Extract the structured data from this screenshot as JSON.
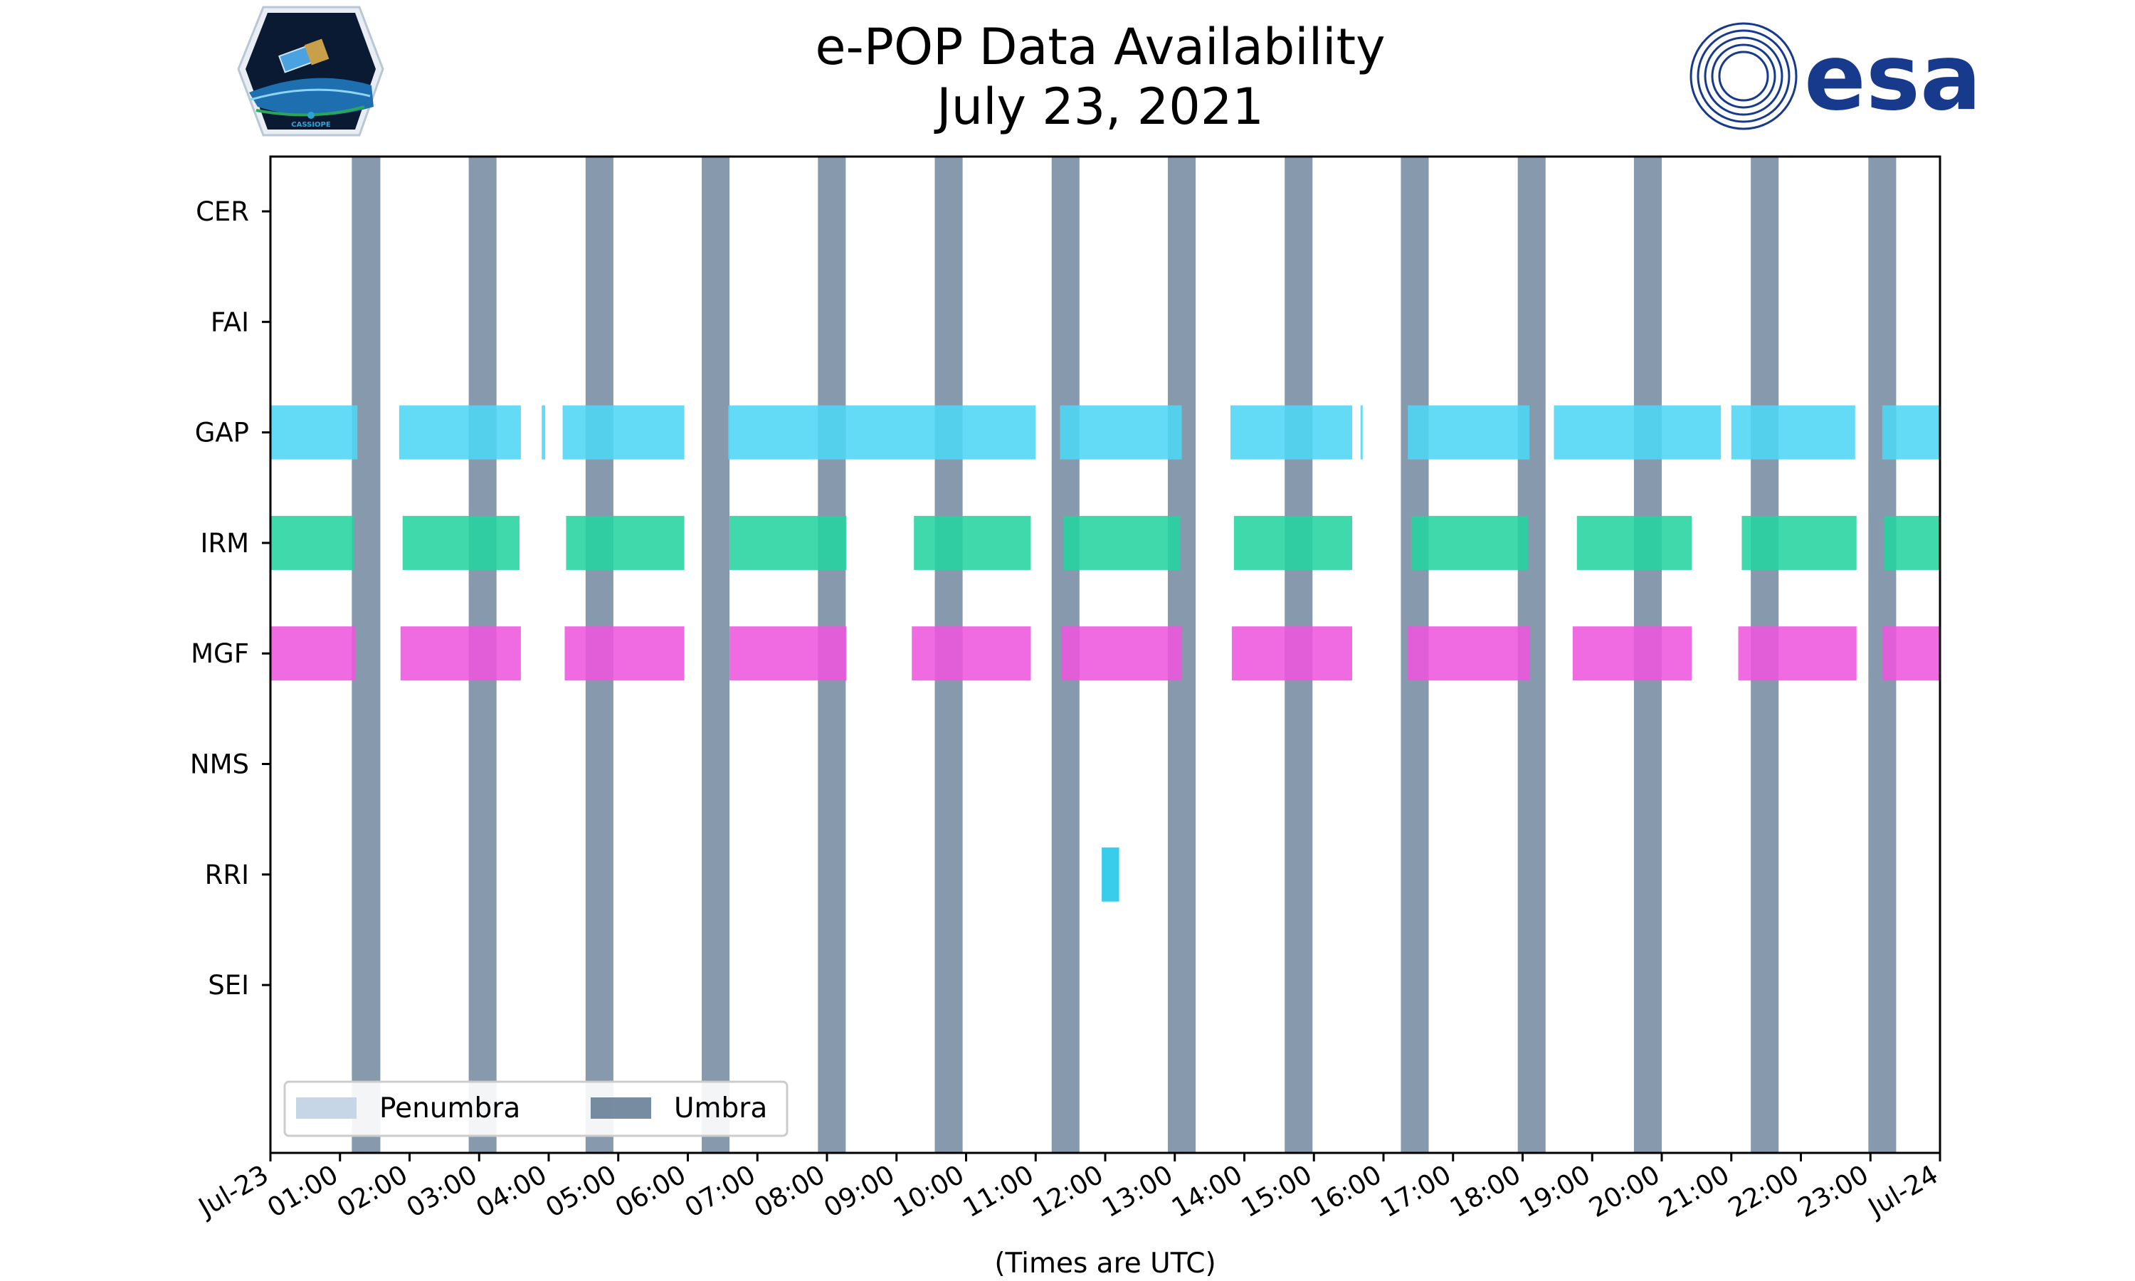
{
  "chart_data": {
    "type": "timeline",
    "title": "e-POP Data Availability",
    "subtitle": "July 23, 2021",
    "xlabel": "(Times are UTC)",
    "xlim_hours": [
      0,
      24
    ],
    "x_tick_labels": [
      "Jul-23",
      "01:00",
      "02:00",
      "03:00",
      "04:00",
      "05:00",
      "06:00",
      "07:00",
      "08:00",
      "09:00",
      "10:00",
      "11:00",
      "12:00",
      "13:00",
      "14:00",
      "15:00",
      "16:00",
      "17:00",
      "18:00",
      "19:00",
      "20:00",
      "21:00",
      "22:00",
      "23:00",
      "Jul-24"
    ],
    "instruments": [
      "CER",
      "FAI",
      "GAP",
      "IRM",
      "MGF",
      "NMS",
      "RRI",
      "SEI"
    ],
    "colors": {
      "GAP": "#4dd6f5",
      "IRM": "#25d4a0",
      "MGF": "#ee55de",
      "RRI": "#1ec5e8",
      "umbra": "#5f7891",
      "penumbra": "#c7d6e6"
    },
    "umbra_intervals": [
      [
        1.17,
        1.58
      ],
      [
        2.85,
        3.25
      ],
      [
        4.53,
        4.93
      ],
      [
        6.2,
        6.6
      ],
      [
        7.87,
        8.27
      ],
      [
        9.55,
        9.95
      ],
      [
        11.23,
        11.63
      ],
      [
        12.9,
        13.3
      ],
      [
        14.58,
        14.98
      ],
      [
        16.25,
        16.65
      ],
      [
        17.93,
        18.33
      ],
      [
        19.6,
        20.0
      ],
      [
        21.28,
        21.68
      ],
      [
        22.97,
        23.37
      ]
    ],
    "series": [
      {
        "name": "CER",
        "intervals": []
      },
      {
        "name": "FAI",
        "intervals": []
      },
      {
        "name": "GAP",
        "intervals": [
          [
            0.0,
            1.25
          ],
          [
            1.85,
            3.6
          ],
          [
            3.9,
            3.95
          ],
          [
            4.2,
            5.95
          ],
          [
            6.58,
            11.0
          ],
          [
            11.35,
            13.1
          ],
          [
            13.8,
            15.55
          ],
          [
            15.67,
            15.7
          ],
          [
            16.35,
            18.1
          ],
          [
            18.45,
            20.85
          ],
          [
            21.0,
            22.78
          ],
          [
            23.17,
            24.0
          ]
        ]
      },
      {
        "name": "IRM",
        "intervals": [
          [
            0.0,
            1.2
          ],
          [
            1.9,
            3.58
          ],
          [
            4.25,
            5.95
          ],
          [
            6.6,
            8.28
          ],
          [
            9.25,
            10.93
          ],
          [
            11.4,
            13.08
          ],
          [
            13.85,
            15.55
          ],
          [
            16.4,
            18.08
          ],
          [
            18.78,
            20.43
          ],
          [
            21.15,
            22.8
          ],
          [
            23.2,
            24.0
          ]
        ]
      },
      {
        "name": "MGF",
        "intervals": [
          [
            0.0,
            1.22
          ],
          [
            1.87,
            3.6
          ],
          [
            4.23,
            5.95
          ],
          [
            6.6,
            8.28
          ],
          [
            9.22,
            10.93
          ],
          [
            11.37,
            13.1
          ],
          [
            13.82,
            15.55
          ],
          [
            16.35,
            18.1
          ],
          [
            18.72,
            20.43
          ],
          [
            21.1,
            22.8
          ],
          [
            23.17,
            24.0
          ]
        ]
      },
      {
        "name": "NMS",
        "intervals": []
      },
      {
        "name": "RRI",
        "intervals": [
          [
            11.95,
            12.2
          ]
        ]
      },
      {
        "name": "SEI",
        "intervals": []
      }
    ],
    "legend": {
      "position": "lower-left",
      "entries": [
        {
          "label": "Penumbra",
          "color_key": "penumbra"
        },
        {
          "label": "Umbra",
          "color_key": "umbra"
        }
      ]
    }
  },
  "logos": {
    "left": {
      "name": "cassiope-logo",
      "caption": "CASSIOPE"
    },
    "right": {
      "name": "esa-logo",
      "text": "esa"
    }
  }
}
